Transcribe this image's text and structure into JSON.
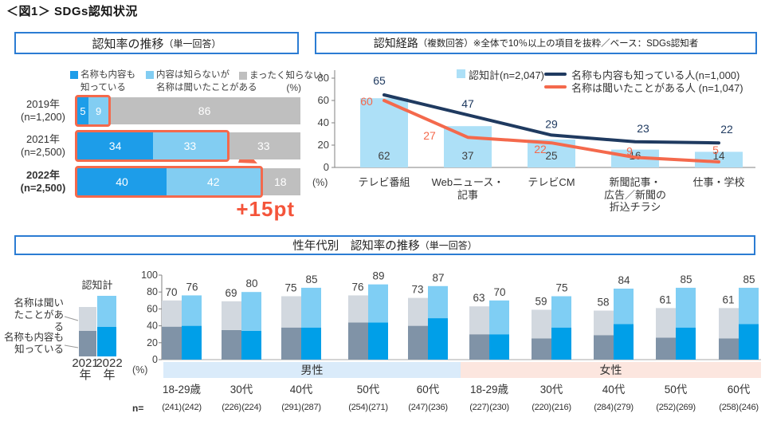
{
  "page": {
    "title": "＜図1＞ SDGs認知状況"
  },
  "colors": {
    "header_border": "#2B7CD3",
    "accent_orange": "#F4694C",
    "annotation_orange": "#F4543A",
    "navy": "#1F3A60",
    "blue_dark": "#1D9DE9",
    "blue_light": "#82CDF2",
    "gray": "#BFBFBF",
    "bar_lightblue": "#ADE0F7",
    "slate_2021": "#8093A7",
    "slate_light_2021": "#D2D8DF",
    "blue_2022": "#009FE8",
    "blue_light_2022": "#7FCEF4",
    "male_band": "#DAEBFA",
    "female_band": "#FCE6DF",
    "axis_gray": "#808080",
    "label_gray": "#404040"
  },
  "chart_data": [
    {
      "id": "awareness-trend",
      "type": "bar",
      "variant": "horizontal-stacked",
      "title": "認知率の推移",
      "title_note": "（単一回答）",
      "unit": "(%)",
      "xlim": [
        0,
        100
      ],
      "legend": [
        {
          "label": "名称も内容も知っている",
          "lines": [
            "名称も内容も",
            "知っている"
          ],
          "color_key": "blue_dark"
        },
        {
          "label": "内容は知らないが名称は聞いたことがある",
          "lines": [
            "内容は知らないが",
            "名称は聞いたことがある"
          ],
          "color_key": "blue_light"
        },
        {
          "label": "まったく知らない",
          "lines": [
            "まったく知らない"
          ],
          "color_key": "gray"
        }
      ],
      "categories": [
        "2019年",
        "2021年",
        "2022年"
      ],
      "category_notes": [
        "(n=1,200)",
        "(n=2,500)",
        "(n=2,500)"
      ],
      "bold_category_index": 2,
      "series": [
        {
          "name": "名称も内容も知っている",
          "values": [
            5,
            34,
            40
          ]
        },
        {
          "name": "内容は知らないが名称は聞いたことがある",
          "values": [
            9,
            33,
            42
          ]
        },
        {
          "name": "まったく知らない",
          "values": [
            86,
            33,
            18
          ]
        }
      ],
      "highlighted_totals": [
        14,
        67,
        82
      ],
      "annotation": "+15pt"
    },
    {
      "id": "awareness-channels",
      "type": "bar+line",
      "title": "認知経路",
      "title_note": "（複数回答）※全体で10％以上の項目を抜粋／ベース：SDGs認知者",
      "unit": "(%)",
      "ylim": [
        0,
        80
      ],
      "yticks": [
        0,
        20,
        40,
        60,
        80
      ],
      "legend_position": "top",
      "categories": [
        [
          "テレビ番組"
        ],
        [
          "Webニュース・",
          "記事"
        ],
        [
          "テレビCM"
        ],
        [
          "新聞記事・",
          "広告／新聞の",
          "折込チラシ"
        ],
        [
          "仕事・学校"
        ]
      ],
      "series": [
        {
          "name": "認知計(n=2,047)",
          "kind": "bar",
          "color_key": "bar_lightblue",
          "values": [
            62,
            37,
            25,
            16,
            14
          ]
        },
        {
          "name": "名称も内容も知っている人(n=1,000)",
          "kind": "line",
          "color_key": "navy",
          "values": [
            65,
            47,
            29,
            23,
            22
          ]
        },
        {
          "name": "名称は聞いたことがある人 (n=1,047)",
          "kind": "line",
          "color_key": "accent_orange",
          "values": [
            60,
            27,
            22,
            9,
            5
          ]
        }
      ]
    },
    {
      "id": "by-gender-age",
      "type": "bar",
      "variant": "grouped-stacked",
      "title": "性年代別　認知率の推移",
      "title_note": "（単一回答）",
      "unit": "(%)",
      "ylim": [
        0,
        100
      ],
      "yticks": [
        0,
        20,
        40,
        60,
        80,
        100
      ],
      "legend": {
        "total_label": "認知計",
        "heard_label": "名称は聞いたことがある",
        "heard_lines": [
          "名称は聞い",
          "たことがある"
        ],
        "known_label": "名称も内容も知っている",
        "known_lines": [
          "名称も内容も",
          "知っている"
        ],
        "mini": {
          "years": [
            "2021",
            "2022"
          ],
          "year_suffix": "年",
          "values_2021": {
            "known": 34,
            "heard": 33
          },
          "values_2022": {
            "known": 40,
            "heard": 42
          }
        }
      },
      "gender_bands": [
        "男性",
        "女性"
      ],
      "age_labels": [
        "18-29歳",
        "30代",
        "40代",
        "50代",
        "60代",
        "18-29歳",
        "30代",
        "40代",
        "50代",
        "60代"
      ],
      "n_label": "n=",
      "groups": [
        {
          "gender": "男性",
          "age": "18-29歳",
          "y2021": {
            "total": 70,
            "known": 39
          },
          "y2022": {
            "total": 76,
            "known": 40
          },
          "n": [
            "(241)",
            "(242)"
          ]
        },
        {
          "gender": "男性",
          "age": "30代",
          "y2021": {
            "total": 69,
            "known": 35
          },
          "y2022": {
            "total": 80,
            "known": 34
          },
          "n": [
            "(226)",
            "(224)"
          ]
        },
        {
          "gender": "男性",
          "age": "40代",
          "y2021": {
            "total": 75,
            "known": 38
          },
          "y2022": {
            "total": 85,
            "known": 38
          },
          "n": [
            "(291)",
            "(287)"
          ]
        },
        {
          "gender": "男性",
          "age": "50代",
          "y2021": {
            "total": 76,
            "known": 44
          },
          "y2022": {
            "total": 89,
            "known": 44
          },
          "n": [
            "(254)",
            "(271)"
          ]
        },
        {
          "gender": "男性",
          "age": "60代",
          "y2021": {
            "total": 73,
            "known": 40
          },
          "y2022": {
            "total": 87,
            "known": 49
          },
          "n": [
            "(247)",
            "(236)"
          ]
        },
        {
          "gender": "女性",
          "age": "18-29歳",
          "y2021": {
            "total": 63,
            "known": 30
          },
          "y2022": {
            "total": 70,
            "known": 30
          },
          "n": [
            "(227)",
            "(230)"
          ]
        },
        {
          "gender": "女性",
          "age": "30代",
          "y2021": {
            "total": 59,
            "known": 25
          },
          "y2022": {
            "total": 75,
            "known": 38
          },
          "n": [
            "(220)",
            "(216)"
          ]
        },
        {
          "gender": "女性",
          "age": "40代",
          "y2021": {
            "total": 58,
            "known": 29
          },
          "y2022": {
            "total": 84,
            "known": 42
          },
          "n": [
            "(284)",
            "(279)"
          ]
        },
        {
          "gender": "女性",
          "age": "50代",
          "y2021": {
            "total": 61,
            "known": 26
          },
          "y2022": {
            "total": 85,
            "known": 38
          },
          "n": [
            "(252)",
            "(269)"
          ]
        },
        {
          "gender": "女性",
          "age": "60代",
          "y2021": {
            "total": 61,
            "known": 25
          },
          "y2022": {
            "total": 85,
            "known": 42
          },
          "n": [
            "(258)",
            "(246)"
          ]
        }
      ]
    }
  ]
}
